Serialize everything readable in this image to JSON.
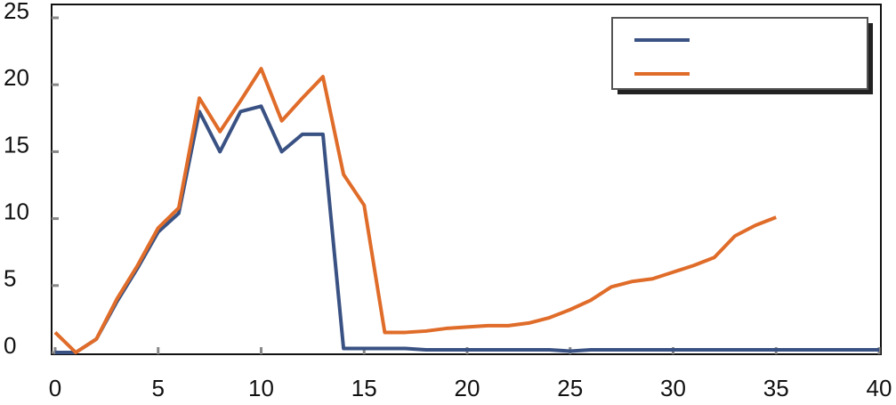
{
  "chart_data": {
    "type": "line",
    "x": [
      0,
      1,
      2,
      3,
      4,
      5,
      6,
      7,
      8,
      9,
      10,
      11,
      12,
      13,
      14,
      15,
      16,
      17,
      18,
      19,
      20,
      21,
      22,
      23,
      24,
      25,
      26,
      27,
      28,
      29,
      30,
      31,
      32,
      33,
      34,
      35,
      36,
      37,
      38,
      39,
      40
    ],
    "series": [
      {
        "color": "#3a5283",
        "values": [
          0,
          0,
          1,
          3.8,
          6.3,
          9,
          10.4,
          18,
          15,
          18,
          18.4,
          15,
          16.3,
          16.3,
          0.3,
          0.3,
          0.3,
          0.3,
          0.2,
          0.2,
          0.2,
          0.2,
          0.2,
          0.2,
          0.2,
          0.1,
          0.2,
          0.2,
          0.2,
          0.2,
          0.2,
          0.2,
          0.2,
          0.2,
          0.2,
          0.2,
          0.2,
          0.2,
          0.2,
          0.2,
          0.2
        ]
      },
      {
        "color": "#e06c2a",
        "values": [
          1.5,
          0,
          1,
          4,
          6.5,
          9.3,
          10.8,
          19,
          16.5,
          18.8,
          21.2,
          17.3,
          19,
          20.6,
          13.3,
          11,
          1.5,
          1.5,
          1.6,
          1.8,
          1.9,
          2,
          2,
          2.2,
          2.6,
          3.2,
          3.9,
          4.9,
          5.3,
          5.5,
          6,
          6.5,
          7.1,
          8.7,
          9.5,
          10.1,
          null,
          null,
          null,
          null,
          null
        ]
      }
    ],
    "xlim": [
      0,
      40
    ],
    "xticks": [
      0,
      5,
      10,
      15,
      20,
      25,
      30,
      35,
      40
    ],
    "ylim": [
      0,
      25
    ],
    "yticks": [
      0,
      5,
      10,
      15,
      20,
      25
    ]
  }
}
